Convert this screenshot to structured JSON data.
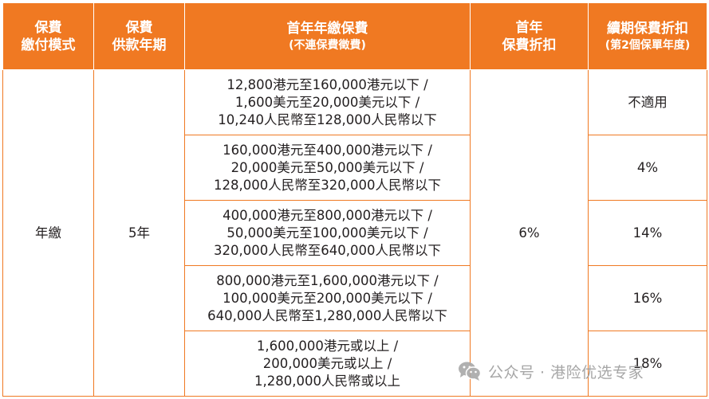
{
  "header": {
    "payment_mode": [
      "保費",
      "繳付模式"
    ],
    "payment_term": [
      "保費",
      "供款年期"
    ],
    "first_year_premium": {
      "title": "首年年繳保費",
      "subtitle": "(不連保費徵費)"
    },
    "first_year_discount": [
      "首年",
      "保費折扣"
    ],
    "renewal_discount": {
      "title": "續期保費折扣",
      "subtitle": "(第2個保單年度)"
    }
  },
  "body": {
    "payment_mode": "年繳",
    "payment_term": "5年",
    "first_year_discount": "6%",
    "rows": [
      {
        "premium_lines": [
          "12,800港元至160,000港元以下 /",
          "1,600美元至20,000美元以下 /",
          "10,240人民幣至128,000人民幣以下"
        ],
        "renewal_discount": "不適用"
      },
      {
        "premium_lines": [
          "160,000港元至400,000港元以下 /",
          "20,000美元至50,000美元以下 /",
          "128,000人民幣至320,000人民幣以下"
        ],
        "renewal_discount": "4%"
      },
      {
        "premium_lines": [
          "400,000港元至800,000港元以下 /",
          "50,000美元至100,000美元以下 /",
          "320,000人民幣至640,000人民幣以下"
        ],
        "renewal_discount": "14%"
      },
      {
        "premium_lines": [
          "800,000港元至1,600,000港元以下 /",
          "100,000美元至200,000美元以下 /",
          "640,000人民幣至1,280,000人民幣以下"
        ],
        "renewal_discount": "16%"
      },
      {
        "premium_lines": [
          "1,600,000港元或以上 /",
          "200,000美元或以上 /",
          "1,280,000人民幣或以上"
        ],
        "renewal_discount": "18%"
      }
    ]
  },
  "watermark": {
    "icon": "wechat-icon",
    "text": "公众号 · 港险优选专家"
  },
  "colors": {
    "accent": "#f07922",
    "header_text": "#ffffff",
    "body_text": "#231f20",
    "watermark": "#9d9d9d"
  }
}
